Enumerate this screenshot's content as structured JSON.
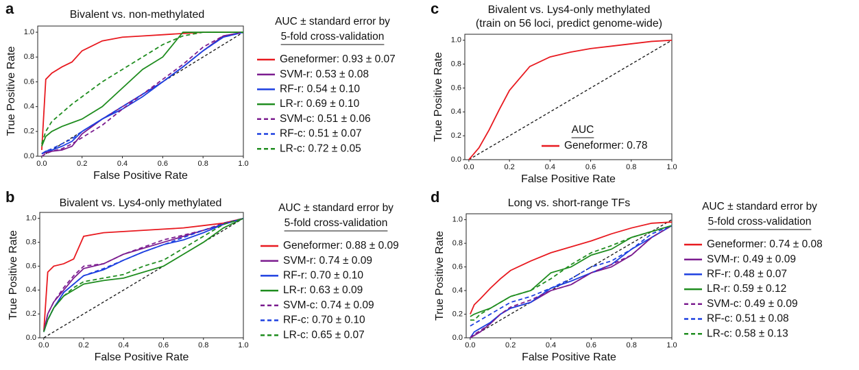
{
  "chart_data": [
    {
      "type": "line",
      "panel_label": "a",
      "title": "Bivalent vs. non-methylated",
      "xlabel": "False Positive Rate",
      "ylabel": "True Positive Rate",
      "legend_title": [
        "AUC ± standard error by",
        "5-fold cross-validation"
      ],
      "x": [
        0,
        0.02,
        0.05,
        0.1,
        0.15,
        0.2,
        0.3,
        0.4,
        0.5,
        0.6,
        0.7,
        0.8,
        0.9,
        1.0
      ],
      "xlim": [
        -0.02,
        1.0
      ],
      "ylim": [
        0,
        1.05
      ],
      "xticks": [
        {
          "value": 0,
          "label": "0.0"
        },
        0.2,
        0.4,
        0.6,
        0.8,
        {
          "value": 1,
          "label": "1.0"
        }
      ],
      "yticks": [
        {
          "value": 0,
          "label": "0.0"
        },
        0.2,
        0.4,
        0.6,
        0.8,
        {
          "value": 1,
          "label": "1.0"
        }
      ],
      "series": [
        {
          "name": "Geneformer: 0.93 ± 0.07",
          "color": "#e8191f",
          "dash": false,
          "values": [
            0.05,
            0.62,
            0.67,
            0.72,
            0.76,
            0.85,
            0.93,
            0.96,
            0.97,
            0.98,
            0.99,
            1.0,
            1.0,
            1.0
          ]
        },
        {
          "name": "SVM-r: 0.53 ± 0.08",
          "color": "#7b1c8f",
          "dash": false,
          "values": [
            0.02,
            0.03,
            0.04,
            0.05,
            0.08,
            0.18,
            0.3,
            0.4,
            0.5,
            0.6,
            0.72,
            0.85,
            0.97,
            1.0
          ]
        },
        {
          "name": "RF-r: 0.54 ± 0.10",
          "color": "#1c3fe0",
          "dash": false,
          "values": [
            0.02,
            0.04,
            0.05,
            0.08,
            0.12,
            0.2,
            0.3,
            0.38,
            0.48,
            0.6,
            0.72,
            0.85,
            0.96,
            1.0
          ]
        },
        {
          "name": "LR-r: 0.69 ± 0.10",
          "color": "#1e8c1e",
          "dash": false,
          "values": [
            0.08,
            0.16,
            0.2,
            0.24,
            0.27,
            0.3,
            0.4,
            0.55,
            0.7,
            0.8,
            1.0,
            1.0,
            1.0,
            1.0
          ]
        },
        {
          "name": "SVM-c: 0.51 ± 0.06",
          "color": "#7b1c8f",
          "dash": true,
          "values": [
            0.0,
            0.02,
            0.04,
            0.06,
            0.1,
            0.15,
            0.25,
            0.38,
            0.5,
            0.62,
            0.74,
            0.88,
            0.97,
            1.0
          ]
        },
        {
          "name": "RF-c: 0.51 ± 0.07",
          "color": "#1c3fe0",
          "dash": true,
          "values": [
            0.02,
            0.04,
            0.06,
            0.1,
            0.14,
            0.2,
            0.3,
            0.4,
            0.5,
            0.6,
            0.72,
            0.85,
            0.96,
            1.0
          ]
        },
        {
          "name": "LR-c: 0.72 ± 0.05",
          "color": "#1e8c1e",
          "dash": true,
          "values": [
            0.1,
            0.2,
            0.28,
            0.35,
            0.42,
            0.48,
            0.6,
            0.7,
            0.8,
            0.9,
            0.97,
            1.0,
            1.0,
            1.0
          ]
        }
      ]
    },
    {
      "type": "line",
      "panel_label": "b",
      "title": "Bivalent vs. Lys4-only methylated",
      "xlabel": "False Positive Rate",
      "ylabel": "True Positive Rate",
      "legend_title": [
        "AUC ± standard error by",
        "5-fold cross-validation"
      ],
      "x": [
        0,
        0.02,
        0.05,
        0.1,
        0.15,
        0.2,
        0.3,
        0.4,
        0.5,
        0.6,
        0.7,
        0.8,
        0.9,
        1.0
      ],
      "xlim": [
        -0.02,
        1.0
      ],
      "ylim": [
        0,
        1.05
      ],
      "xticks": [
        {
          "value": 0,
          "label": "0.0"
        },
        0.2,
        0.4,
        0.6,
        0.8,
        {
          "value": 1,
          "label": "1.0"
        }
      ],
      "yticks": [
        {
          "value": 0,
          "label": "0.0"
        },
        0.2,
        0.4,
        0.6,
        0.8,
        {
          "value": 1,
          "label": "1.0"
        }
      ],
      "series": [
        {
          "name": "Geneformer: 0.88 ± 0.09",
          "color": "#e8191f",
          "dash": false,
          "values": [
            0.05,
            0.55,
            0.6,
            0.62,
            0.66,
            0.85,
            0.88,
            0.89,
            0.9,
            0.91,
            0.92,
            0.94,
            0.96,
            1.0
          ]
        },
        {
          "name": "SVM-r: 0.74 ± 0.09",
          "color": "#7b1c8f",
          "dash": false,
          "values": [
            0.05,
            0.2,
            0.3,
            0.4,
            0.5,
            0.58,
            0.62,
            0.7,
            0.75,
            0.8,
            0.85,
            0.9,
            0.95,
            1.0
          ]
        },
        {
          "name": "RF-r: 0.70 ± 0.10",
          "color": "#1c3fe0",
          "dash": false,
          "values": [
            0.05,
            0.15,
            0.25,
            0.38,
            0.45,
            0.52,
            0.57,
            0.65,
            0.72,
            0.78,
            0.82,
            0.88,
            0.95,
            1.0
          ]
        },
        {
          "name": "LR-r: 0.63 ± 0.09",
          "color": "#1e8c1e",
          "dash": false,
          "values": [
            0.05,
            0.15,
            0.25,
            0.35,
            0.4,
            0.45,
            0.48,
            0.5,
            0.55,
            0.6,
            0.7,
            0.8,
            0.92,
            1.0
          ]
        },
        {
          "name": "SVM-c: 0.74 ± 0.09",
          "color": "#7b1c8f",
          "dash": true,
          "values": [
            0.05,
            0.2,
            0.3,
            0.42,
            0.52,
            0.6,
            0.62,
            0.7,
            0.76,
            0.82,
            0.86,
            0.9,
            0.96,
            1.0
          ]
        },
        {
          "name": "RF-c: 0.70 ± 0.10",
          "color": "#1c3fe0",
          "dash": true,
          "values": [
            0.05,
            0.15,
            0.25,
            0.38,
            0.45,
            0.52,
            0.58,
            0.65,
            0.72,
            0.78,
            0.84,
            0.9,
            0.95,
            1.0
          ]
        },
        {
          "name": "LR-c: 0.65 ± 0.07",
          "color": "#1e8c1e",
          "dash": true,
          "values": [
            0.05,
            0.15,
            0.25,
            0.35,
            0.42,
            0.47,
            0.5,
            0.53,
            0.6,
            0.65,
            0.75,
            0.85,
            0.95,
            1.0
          ]
        }
      ]
    },
    {
      "type": "line",
      "panel_label": "c",
      "title": "Bivalent vs. Lys4-only methylated",
      "subtitle": "(train on 56 loci, predict genome-wide)",
      "xlabel": "False Positive Rate",
      "ylabel": "True Positive Rate",
      "legend_title": [
        "AUC"
      ],
      "x": [
        0,
        0.02,
        0.05,
        0.1,
        0.15,
        0.2,
        0.3,
        0.4,
        0.5,
        0.6,
        0.7,
        0.8,
        0.9,
        1.0
      ],
      "xlim": [
        -0.02,
        1.0
      ],
      "ylim": [
        0,
        1.05
      ],
      "xticks": [
        {
          "value": 0,
          "label": "0.0"
        },
        0.2,
        0.4,
        0.6,
        0.8,
        {
          "value": 1,
          "label": "1.0"
        }
      ],
      "yticks": [
        {
          "value": 0,
          "label": "0.0"
        },
        0.2,
        0.4,
        0.6,
        0.8,
        {
          "value": 1,
          "label": "1.0"
        }
      ],
      "series": [
        {
          "name": "Geneformer: 0.78",
          "color": "#e8191f",
          "dash": false,
          "values": [
            0,
            0.04,
            0.1,
            0.25,
            0.42,
            0.58,
            0.78,
            0.86,
            0.9,
            0.93,
            0.95,
            0.97,
            0.99,
            1.0
          ]
        }
      ]
    },
    {
      "type": "line",
      "panel_label": "d",
      "title": "Long vs. short-range TFs",
      "xlabel": "False Positive Rate",
      "ylabel": "True Positive Rate",
      "legend_title": [
        "AUC ± standard error by",
        "5-fold cross-validation"
      ],
      "x": [
        0,
        0.02,
        0.05,
        0.1,
        0.15,
        0.2,
        0.3,
        0.4,
        0.5,
        0.6,
        0.7,
        0.8,
        0.9,
        1.0
      ],
      "xlim": [
        -0.02,
        1.0
      ],
      "ylim": [
        0,
        1.05
      ],
      "xticks": [
        {
          "value": 0,
          "label": "0.0"
        },
        0.2,
        0.4,
        0.6,
        0.8,
        {
          "value": 1,
          "label": "1.0"
        }
      ],
      "yticks": [
        {
          "value": 0,
          "label": "0.0"
        },
        0.2,
        0.4,
        0.6,
        0.8,
        {
          "value": 1,
          "label": "1.0"
        }
      ],
      "series": [
        {
          "name": "Geneformer: 0.74 ± 0.08",
          "color": "#e8191f",
          "dash": false,
          "values": [
            0.2,
            0.28,
            0.33,
            0.42,
            0.5,
            0.57,
            0.65,
            0.72,
            0.77,
            0.82,
            0.88,
            0.93,
            0.97,
            0.98
          ]
        },
        {
          "name": "SVM-r: 0.49 ± 0.09",
          "color": "#7b1c8f",
          "dash": false,
          "values": [
            0.0,
            0.02,
            0.05,
            0.12,
            0.2,
            0.25,
            0.3,
            0.4,
            0.45,
            0.55,
            0.6,
            0.7,
            0.85,
            0.95
          ]
        },
        {
          "name": "RF-r: 0.48 ± 0.07",
          "color": "#1c3fe0",
          "dash": false,
          "values": [
            0.0,
            0.05,
            0.08,
            0.13,
            0.2,
            0.25,
            0.3,
            0.42,
            0.48,
            0.55,
            0.62,
            0.75,
            0.85,
            0.95
          ]
        },
        {
          "name": "LR-r: 0.59 ± 0.12",
          "color": "#1e8c1e",
          "dash": false,
          "values": [
            0.18,
            0.2,
            0.22,
            0.25,
            0.3,
            0.35,
            0.4,
            0.55,
            0.6,
            0.7,
            0.75,
            0.85,
            0.9,
            0.95
          ]
        },
        {
          "name": "SVM-c: 0.49 ± 0.09",
          "color": "#7b1c8f",
          "dash": true,
          "values": [
            0.0,
            0.03,
            0.06,
            0.12,
            0.2,
            0.26,
            0.32,
            0.4,
            0.45,
            0.55,
            0.62,
            0.7,
            0.85,
            0.95
          ]
        },
        {
          "name": "RF-c: 0.51 ± 0.08",
          "color": "#1c3fe0",
          "dash": true,
          "values": [
            0.1,
            0.12,
            0.15,
            0.2,
            0.25,
            0.3,
            0.35,
            0.42,
            0.5,
            0.6,
            0.65,
            0.75,
            0.88,
            0.95
          ]
        },
        {
          "name": "LR-c: 0.58 ± 0.13",
          "color": "#1e8c1e",
          "dash": true,
          "values": [
            0.15,
            0.15,
            0.2,
            0.25,
            0.3,
            0.35,
            0.4,
            0.5,
            0.62,
            0.72,
            0.78,
            0.85,
            0.9,
            0.95
          ]
        }
      ]
    }
  ]
}
